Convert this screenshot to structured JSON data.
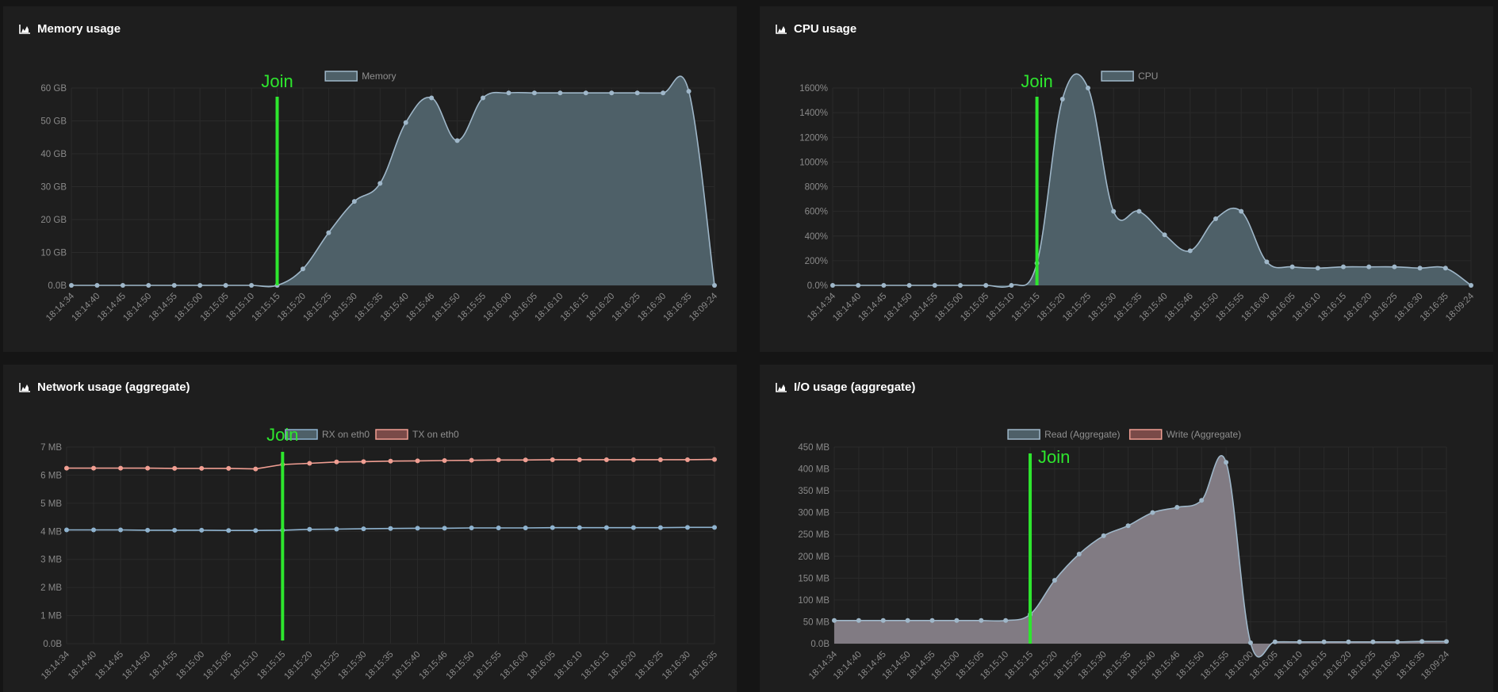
{
  "colors": {
    "memory_line": "#9fb7c9",
    "memory_fill": "#4e6068",
    "cpu_line": "#9fb7c9",
    "cpu_fill": "#4e6068",
    "rx_line": "#8fb3cf",
    "tx_line": "#f09e92",
    "read_line": "#9fb7c9",
    "read_fill": "#817b83",
    "join": "#2ee62e",
    "grid": "#2a2a2a"
  },
  "panels": {
    "memory": {
      "title": "Memory usage",
      "icon": "area-chart-icon"
    },
    "cpu": {
      "title": "CPU usage",
      "icon": "area-chart-icon"
    },
    "network": {
      "title": "Network usage (aggregate)",
      "icon": "area-chart-icon"
    },
    "io": {
      "title": "I/O usage (aggregate)",
      "icon": "area-chart-icon"
    }
  },
  "chart_data": [
    {
      "id": "memory",
      "type": "area",
      "title": "Memory usage",
      "x": [
        "18:14:34",
        "18:14:40",
        "18:14:45",
        "18:14:50",
        "18:14:55",
        "18:15:00",
        "18:15:05",
        "18:15:10",
        "18:15:15",
        "18:15:20",
        "18:15:25",
        "18:15:30",
        "18:15:35",
        "18:15:40",
        "18:15:46",
        "18:15:50",
        "18:15:55",
        "18:16:00",
        "18:16:05",
        "18:16:10",
        "18:16:15",
        "18:16:20",
        "18:16:25",
        "18:16:30",
        "18:16:35",
        "18:09:24"
      ],
      "series": [
        {
          "name": "Memory",
          "values": [
            0,
            0,
            0,
            0,
            0,
            0,
            0,
            0,
            0,
            5,
            16,
            25.5,
            31,
            49.5,
            57,
            44,
            57,
            58.5,
            58.5,
            58.5,
            58.5,
            58.5,
            58.5,
            58.5,
            59,
            0
          ]
        }
      ],
      "yticks": [
        "0.0B",
        "10 GB",
        "20 GB",
        "30 GB",
        "40 GB",
        "50 GB",
        "60 GB"
      ],
      "ylim": [
        0,
        60
      ],
      "unit": "GB",
      "annotation": {
        "text": "Join",
        "x_index": 8
      },
      "grid": true,
      "legend_position": "top"
    },
    {
      "id": "cpu",
      "type": "area",
      "title": "CPU usage",
      "x": [
        "18:14:34",
        "18:14:40",
        "18:14:45",
        "18:14:50",
        "18:14:55",
        "18:15:00",
        "18:15:05",
        "18:15:10",
        "18:15:15",
        "18:15:20",
        "18:15:25",
        "18:15:30",
        "18:15:35",
        "18:15:40",
        "18:15:46",
        "18:15:50",
        "18:15:55",
        "18:16:00",
        "18:16:05",
        "18:16:10",
        "18:16:15",
        "18:16:20",
        "18:16:25",
        "18:16:30",
        "18:16:35",
        "18:09:24"
      ],
      "series": [
        {
          "name": "CPU",
          "values": [
            0,
            0,
            0,
            0,
            0,
            0,
            0,
            0,
            180,
            1510,
            1600,
            600,
            600,
            410,
            280,
            540,
            600,
            190,
            150,
            140,
            150,
            150,
            150,
            140,
            140,
            0
          ]
        }
      ],
      "yticks": [
        "0.0%",
        "200%",
        "400%",
        "600%",
        "800%",
        "1000%",
        "1200%",
        "1400%",
        "1600%"
      ],
      "ylim": [
        0,
        1600
      ],
      "unit": "%",
      "annotation": {
        "text": "Join",
        "x_index": 8
      },
      "grid": true,
      "legend_position": "top"
    },
    {
      "id": "network",
      "type": "line",
      "title": "Network usage (aggregate)",
      "x": [
        "18:14:34",
        "18:14:40",
        "18:14:45",
        "18:14:50",
        "18:14:55",
        "18:15:00",
        "18:15:05",
        "18:15:10",
        "18:15:15",
        "18:15:20",
        "18:15:25",
        "18:15:30",
        "18:15:35",
        "18:15:40",
        "18:15:46",
        "18:15:50",
        "18:15:55",
        "18:16:00",
        "18:16:05",
        "18:16:10",
        "18:16:15",
        "18:16:20",
        "18:16:25",
        "18:16:30",
        "18:16:35"
      ],
      "series": [
        {
          "name": "RX on eth0",
          "values": [
            4.05,
            4.05,
            4.05,
            4.04,
            4.04,
            4.04,
            4.03,
            4.03,
            4.04,
            4.07,
            4.08,
            4.09,
            4.1,
            4.11,
            4.11,
            4.12,
            4.12,
            4.12,
            4.13,
            4.13,
            4.13,
            4.13,
            4.13,
            4.14,
            4.14
          ]
        },
        {
          "name": "TX on eth0",
          "values": [
            6.25,
            6.25,
            6.25,
            6.25,
            6.24,
            6.24,
            6.24,
            6.22,
            6.38,
            6.42,
            6.47,
            6.48,
            6.5,
            6.51,
            6.52,
            6.53,
            6.54,
            6.54,
            6.55,
            6.55,
            6.55,
            6.55,
            6.55,
            6.55,
            6.56
          ]
        }
      ],
      "yticks": [
        "0.0B",
        "1 MB",
        "2 MB",
        "3 MB",
        "4 MB",
        "5 MB",
        "6 MB",
        "7 MB"
      ],
      "ylim": [
        0,
        7
      ],
      "unit": "MB",
      "annotation": {
        "text": "Join",
        "x_index": 8
      },
      "grid": true,
      "legend_position": "top"
    },
    {
      "id": "io",
      "type": "area",
      "title": "I/O usage (aggregate)",
      "x": [
        "18:14:34",
        "18:14:40",
        "18:14:45",
        "18:14:50",
        "18:14:55",
        "18:15:00",
        "18:15:05",
        "18:15:10",
        "18:15:15",
        "18:15:20",
        "18:15:25",
        "18:15:30",
        "18:15:35",
        "18:15:40",
        "18:15:46",
        "18:15:50",
        "18:15:55",
        "18:16:00",
        "18:16:05",
        "18:16:10",
        "18:16:15",
        "18:16:20",
        "18:16:25",
        "18:16:30",
        "18:16:35",
        "18:09:24"
      ],
      "series": [
        {
          "name": "Read (Aggregate)",
          "values": [
            53,
            53,
            53,
            53,
            53,
            53,
            53,
            53,
            67,
            145,
            205,
            247,
            270,
            300,
            312,
            328,
            415,
            2,
            4,
            4,
            4,
            4,
            4,
            4,
            5,
            5
          ]
        },
        {
          "name": "Write (Aggregate)",
          "values": [
            0,
            0,
            0,
            0,
            0,
            0,
            0,
            0,
            0,
            0,
            0,
            0,
            0,
            0,
            0,
            0,
            0,
            0,
            0,
            0,
            0,
            0,
            0,
            0,
            0,
            0
          ]
        }
      ],
      "yticks": [
        "0.0B",
        "50 MB",
        "100 MB",
        "150 MB",
        "200 MB",
        "250 MB",
        "300 MB",
        "350 MB",
        "400 MB",
        "450 MB"
      ],
      "ylim": [
        0,
        450
      ],
      "unit": "MB",
      "annotation": {
        "text": "Join",
        "x_index": 8
      },
      "grid": true,
      "legend_position": "top"
    }
  ]
}
